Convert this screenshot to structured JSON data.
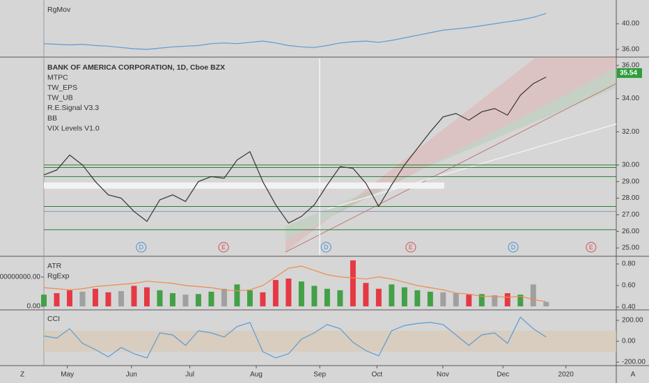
{
  "chart_data": [
    {
      "type": "line",
      "labels": [
        "RgMov"
      ],
      "color": "#5b9bd5",
      "x": [
        0,
        2.25,
        4.5,
        6.75,
        9,
        11.25,
        13.5,
        15.75,
        18,
        20.25,
        22.5,
        24.75,
        27,
        29.25,
        31.5,
        33.75,
        36,
        38.25,
        40.5,
        42.75,
        45,
        47.25,
        49.5,
        51.75,
        54,
        56.25,
        58.5,
        60.75,
        63,
        65.25,
        67.5,
        69.75,
        72,
        74.25,
        76.5,
        78.75,
        81,
        83.25,
        85.5,
        87.75
      ],
      "values": [
        36.9,
        36.8,
        36.7,
        36.8,
        36.6,
        36.5,
        36.3,
        36.1,
        36.0,
        36.2,
        36.4,
        36.5,
        36.6,
        36.9,
        37.0,
        36.9,
        37.1,
        37.3,
        37.0,
        36.6,
        36.4,
        36.3,
        36.6,
        37.0,
        37.2,
        37.3,
        37.1,
        37.4,
        37.8,
        38.2,
        38.6,
        39.0,
        39.2,
        39.4,
        39.7,
        40.0,
        40.3,
        40.6,
        41.0,
        41.6
      ],
      "xlim": [
        0,
        100
      ],
      "ylim": [
        34.8,
        43.7
      ],
      "yticks": [
        {
          "value": 36,
          "label": "36.00"
        },
        {
          "value": 40,
          "label": "40.00"
        }
      ]
    },
    {
      "type": "line",
      "labels": [
        "BANK OF AMERICA CORPORATION, 1D, Cboe BZX",
        "MTPC",
        "TW_EPS",
        "TW_UB",
        "R.E.Signal V3.3",
        "BB",
        "VIX Levels V1.0"
      ],
      "color": "#333333",
      "x": [
        0,
        2.25,
        4.5,
        6.75,
        9,
        11.25,
        13.5,
        15.75,
        18,
        20.25,
        22.5,
        24.75,
        27,
        29.25,
        31.5,
        33.75,
        36,
        38.25,
        40.5,
        42.75,
        45,
        47.25,
        49.5,
        51.75,
        54,
        56.25,
        58.5,
        60.75,
        63,
        65.25,
        67.5,
        69.75,
        72,
        74.25,
        76.5,
        78.75,
        81,
        83.25,
        85.5,
        87.75
      ],
      "values": [
        29.4,
        29.7,
        30.6,
        30.0,
        29.0,
        28.2,
        28.0,
        27.2,
        26.6,
        27.9,
        28.2,
        27.8,
        29.0,
        29.3,
        29.2,
        30.3,
        30.8,
        29.0,
        27.6,
        26.5,
        26.9,
        27.6,
        28.8,
        29.9,
        29.8,
        28.9,
        27.5,
        28.8,
        30.0,
        31.0,
        32.0,
        32.9,
        33.1,
        32.7,
        33.2,
        33.4,
        33.0,
        34.2,
        34.9,
        35.3
      ],
      "last_price": 35.54,
      "levels": [
        {
          "value": 30.0,
          "color": "#2e7d32"
        },
        {
          "value": 29.85,
          "color": "#2e7d32"
        },
        {
          "value": 29.3,
          "color": "#2e7d32"
        },
        {
          "value": 27.5,
          "color": "#2e7d32"
        },
        {
          "value": 27.2,
          "color": "#7a9bb5"
        },
        {
          "value": 26.1,
          "color": "#2e7d32"
        }
      ],
      "events": [
        {
          "label": "D",
          "x": 17.0
        },
        {
          "label": "E",
          "x": 31.4
        },
        {
          "label": "D",
          "x": 49.3
        },
        {
          "label": "E",
          "x": 64.1
        },
        {
          "label": "D",
          "x": 82.0
        },
        {
          "label": "E",
          "x": 95.6
        }
      ],
      "xlim": [
        0,
        100
      ],
      "ylim": [
        24.5,
        36.5
      ],
      "yticks": [
        {
          "value": 25,
          "label": "25.00"
        },
        {
          "value": 26,
          "label": "26.00"
        },
        {
          "value": 27,
          "label": "27.00"
        },
        {
          "value": 28,
          "label": "28.00"
        },
        {
          "value": 29,
          "label": "29.00"
        },
        {
          "value": 30,
          "label": "30.00"
        },
        {
          "value": 32,
          "label": "32.00"
        },
        {
          "value": 34,
          "label": "34.00"
        },
        {
          "value": 36,
          "label": "36.00"
        }
      ]
    },
    {
      "type": "bar",
      "labels": [
        "ATR",
        "RgExp"
      ],
      "x": [
        0,
        2.25,
        4.5,
        6.75,
        9,
        11.25,
        13.5,
        15.75,
        18,
        20.25,
        22.5,
        24.75,
        27,
        29.25,
        31.5,
        33.75,
        36,
        38.25,
        40.5,
        42.75,
        45,
        47.25,
        49.5,
        51.75,
        54,
        56.25,
        58.5,
        60.75,
        63,
        65.25,
        67.5,
        69.75,
        72,
        74.25,
        76.5,
        78.75,
        81,
        83.25,
        85.5,
        87.75
      ],
      "series": [
        {
          "type": "bar",
          "values": [
            40000000,
            45000000,
            55000000,
            50000000,
            60000000,
            48000000,
            52000000,
            70000000,
            65000000,
            55000000,
            45000000,
            40000000,
            42000000,
            50000000,
            60000000,
            75000000,
            55000000,
            48000000,
            90000000,
            95000000,
            85000000,
            70000000,
            60000000,
            55000000,
            157000000,
            80000000,
            60000000,
            75000000,
            65000000,
            55000000,
            50000000,
            48000000,
            45000000,
            40000000,
            42000000,
            38000000,
            45000000,
            40000000,
            75000000,
            15000000
          ],
          "colors": [
            "#43a047",
            "#e53945",
            "#e53945",
            "#a0a0a0",
            "#e53945",
            "#e53945",
            "#a0a0a0",
            "#e53945",
            "#e53945",
            "#43a047",
            "#43a047",
            "#a0a0a0",
            "#43a047",
            "#43a047",
            "#a0a0a0",
            "#43a047",
            "#43a047",
            "#e53945",
            "#e53945",
            "#e53945",
            "#43a047",
            "#43a047",
            "#43a047",
            "#43a047",
            "#e53945",
            "#e53945",
            "#e53945",
            "#43a047",
            "#43a047",
            "#43a047",
            "#43a047",
            "#a0a0a0",
            "#a0a0a0",
            "#e53945",
            "#43a047",
            "#a0a0a0",
            "#e53945",
            "#43a047",
            "#a0a0a0",
            "#a0a0a0"
          ]
        },
        {
          "type": "line",
          "axis": "y2",
          "color": "#f08a4b",
          "values": [
            0.58,
            0.57,
            0.56,
            0.57,
            0.59,
            0.6,
            0.61,
            0.62,
            0.64,
            0.63,
            0.62,
            0.6,
            0.59,
            0.58,
            0.56,
            0.55,
            0.56,
            0.6,
            0.68,
            0.76,
            0.78,
            0.74,
            0.7,
            0.68,
            0.67,
            0.66,
            0.68,
            0.66,
            0.63,
            0.6,
            0.58,
            0.56,
            0.53,
            0.52,
            0.5,
            0.5,
            0.49,
            0.5,
            0.47,
            0.45
          ]
        }
      ],
      "xlim": [
        0,
        100
      ],
      "ylim": [
        -12000000,
        171000000
      ],
      "yticks": [
        {
          "value": 0,
          "label": "0.00"
        },
        {
          "value": 100000000,
          "label": "100000000.00"
        }
      ],
      "y2lim": [
        0.374,
        0.871
      ],
      "y2ticks": [
        {
          "value": 0.4,
          "label": "0.40"
        },
        {
          "value": 0.6,
          "label": "0.60"
        },
        {
          "value": 0.8,
          "label": "0.80"
        }
      ]
    },
    {
      "type": "line",
      "labels": [
        "CCI"
      ],
      "color": "#5b9bd5",
      "x": [
        0,
        2.25,
        4.5,
        6.75,
        9,
        11.25,
        13.5,
        15.75,
        18,
        20.25,
        22.5,
        24.75,
        27,
        29.25,
        31.5,
        33.75,
        36,
        38.25,
        40.5,
        42.75,
        45,
        47.25,
        49.5,
        51.75,
        54,
        56.25,
        58.5,
        60.75,
        63,
        65.25,
        67.5,
        69.75,
        72,
        74.25,
        76.5,
        78.75,
        81,
        83.25,
        85.5,
        87.75
      ],
      "values": [
        50,
        30,
        120,
        -20,
        -80,
        -150,
        -60,
        -120,
        -160,
        80,
        60,
        -40,
        100,
        80,
        40,
        140,
        180,
        -100,
        -160,
        -120,
        20,
        80,
        160,
        120,
        -10,
        -90,
        -140,
        100,
        150,
        170,
        180,
        160,
        60,
        -40,
        60,
        80,
        -20,
        230,
        120,
        40
      ],
      "band": [
        -100,
        100
      ],
      "xlim": [
        0,
        100
      ],
      "ylim": [
        -233,
        300
      ],
      "yticks": [
        {
          "value": 200,
          "label": "200.00"
        },
        {
          "value": 0,
          "label": "0.00"
        },
        {
          "value": -200,
          "label": "-200.00"
        }
      ],
      "xticks": [
        {
          "value": 4.1,
          "label": "May"
        },
        {
          "value": 15.3,
          "label": "Jun"
        },
        {
          "value": 25.5,
          "label": "Jul"
        },
        {
          "value": 37.1,
          "label": "Aug"
        },
        {
          "value": 48.2,
          "label": "Sep"
        },
        {
          "value": 58.2,
          "label": "Oct"
        },
        {
          "value": 69.7,
          "label": "Nov"
        },
        {
          "value": 80.2,
          "label": "Dec"
        },
        {
          "value": 91.2,
          "label": "2020"
        }
      ]
    }
  ],
  "corner_labels": [
    "Z",
    "A"
  ]
}
